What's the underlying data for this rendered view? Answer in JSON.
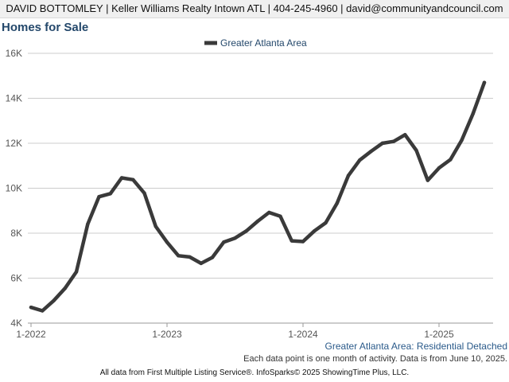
{
  "header": {
    "text": "DAVID BOTTOMLEY | Keller Williams Realty Intown ATL | 404-245-4960 | david@communityandcouncil.com"
  },
  "colors": {
    "series": "#3a3a3a",
    "title": "#24486b",
    "grid": "#cccccc"
  },
  "chart_data": {
    "type": "line",
    "title": "Homes for Sale",
    "legend_position": "top-center",
    "grid": true,
    "ylim": [
      4000,
      16000
    ],
    "y_ticks": [
      {
        "value": 4000,
        "label": "4K"
      },
      {
        "value": 6000,
        "label": "6K"
      },
      {
        "value": 8000,
        "label": "8K"
      },
      {
        "value": 10000,
        "label": "10K"
      },
      {
        "value": 12000,
        "label": "12K"
      },
      {
        "value": 14000,
        "label": "14K"
      },
      {
        "value": 16000,
        "label": "16K"
      }
    ],
    "x_ticks": [
      {
        "value": "2022-01",
        "label": "1-2022"
      },
      {
        "value": "2023-01",
        "label": "1-2023"
      },
      {
        "value": "2024-01",
        "label": "1-2024"
      },
      {
        "value": "2025-01",
        "label": "1-2025"
      }
    ],
    "x": [
      "2022-01",
      "2022-02",
      "2022-03",
      "2022-04",
      "2022-05",
      "2022-06",
      "2022-07",
      "2022-08",
      "2022-09",
      "2022-10",
      "2022-11",
      "2022-12",
      "2023-01",
      "2023-02",
      "2023-03",
      "2023-04",
      "2023-05",
      "2023-06",
      "2023-07",
      "2023-08",
      "2023-09",
      "2023-10",
      "2023-11",
      "2023-12",
      "2024-01",
      "2024-02",
      "2024-03",
      "2024-04",
      "2024-05",
      "2024-06",
      "2024-07",
      "2024-08",
      "2024-09",
      "2024-10",
      "2024-11",
      "2024-12",
      "2025-01",
      "2025-02",
      "2025-03",
      "2025-04",
      "2025-05"
    ],
    "series": [
      {
        "name": "Greater Atlanta Area",
        "values": [
          4700,
          4550,
          5000,
          5550,
          6280,
          8400,
          9620,
          9760,
          10460,
          10380,
          9780,
          8300,
          7600,
          7000,
          6940,
          6660,
          6920,
          7600,
          7780,
          8100,
          8530,
          8920,
          8750,
          7660,
          7630,
          8100,
          8460,
          9330,
          10560,
          11250,
          11640,
          12000,
          12080,
          12380,
          11680,
          10350,
          10900,
          11270,
          12130,
          13320,
          14700
        ]
      }
    ],
    "source_label": "Greater Atlanta Area: Residential Detached"
  },
  "footnote": "Each data point is one month of activity. Data is from June 10, 2025.",
  "footer": "All data from First Multiple Listing Service®. InfoSparks© 2025 ShowingTime Plus, LLC."
}
